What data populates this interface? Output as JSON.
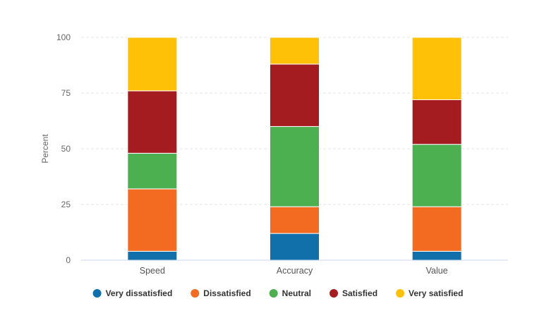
{
  "chart_data": {
    "type": "bar",
    "stacked": true,
    "categories": [
      "Speed",
      "Accuracy",
      "Value"
    ],
    "series": [
      {
        "name": "Very dissatisfied",
        "color": "#1170aa",
        "values": [
          4,
          12,
          4
        ]
      },
      {
        "name": "Dissatisfied",
        "color": "#f26b21",
        "values": [
          28,
          12,
          20
        ]
      },
      {
        "name": "Neutral",
        "color": "#4caf50",
        "values": [
          16,
          36,
          28
        ]
      },
      {
        "name": "Satisfied",
        "color": "#a51c20",
        "values": [
          28,
          28,
          20
        ]
      },
      {
        "name": "Very satisfied",
        "color": "#ffc107",
        "values": [
          24,
          12,
          28
        ]
      }
    ],
    "title": "",
    "xlabel": "",
    "ylabel": "Percent",
    "ylim": [
      0,
      100
    ],
    "yticks": [
      0,
      25,
      50,
      75,
      100
    ],
    "grid": true,
    "legend_position": "bottom"
  }
}
